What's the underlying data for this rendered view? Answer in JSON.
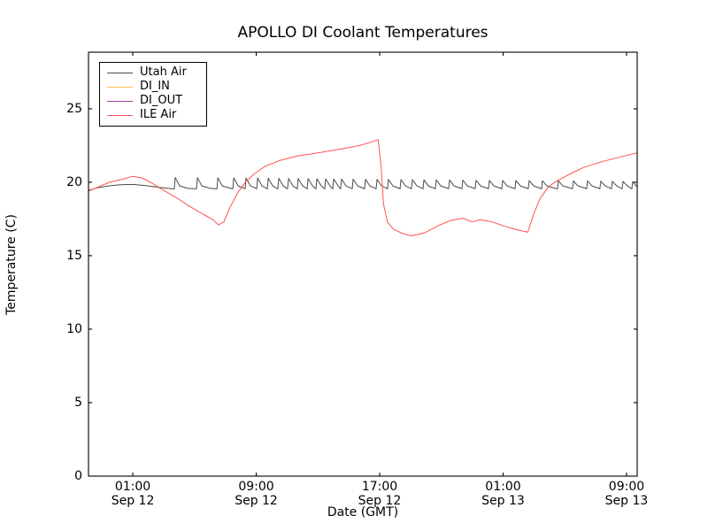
{
  "chart_data": {
    "type": "line",
    "title": "APOLLO DI Coolant Temperatures",
    "xlabel": "Date (GMT)",
    "ylabel": "Temperature (C)",
    "x_unit": "hours since Sep 12 00:00 GMT",
    "xlim": [
      -1.87,
      33.69
    ],
    "ylim": [
      0,
      28.85
    ],
    "yticks": [
      0,
      5,
      10,
      15,
      20,
      25
    ],
    "xticks": [
      {
        "value": 1,
        "time": "01:00",
        "date": "Sep 12"
      },
      {
        "value": 9,
        "time": "09:00",
        "date": "Sep 12"
      },
      {
        "value": 17,
        "time": "17:00",
        "date": "Sep 12"
      },
      {
        "value": 25,
        "time": "01:00",
        "date": "Sep 13"
      },
      {
        "value": 33,
        "time": "09:00",
        "date": "Sep 13"
      }
    ],
    "grid": false,
    "legend_position": "upper-left",
    "axis_color": "#000000",
    "series": [
      {
        "name": "Utah Air",
        "color": "#4a4a4a",
        "style": "sawtooth",
        "base_points": [
          [
            -1.87,
            19.45
          ],
          [
            -1.3,
            19.62
          ],
          [
            -0.6,
            19.75
          ],
          [
            0.2,
            19.83
          ],
          [
            1.0,
            19.85
          ],
          [
            1.8,
            19.78
          ],
          [
            2.5,
            19.68
          ],
          [
            3.3,
            19.58
          ],
          [
            3.62,
            19.55
          ]
        ],
        "spikes": {
          "times": [
            3.69,
            5.13,
            6.45,
            7.48,
            8.28,
            9.03,
            9.72,
            10.4,
            11.03,
            11.66,
            12.3,
            12.87,
            13.44,
            13.96,
            14.47,
            15.22,
            16.02,
            16.77,
            17.51,
            18.32,
            19.06,
            19.81,
            20.61,
            21.47,
            22.33,
            23.19,
            24.05,
            24.91,
            25.77,
            26.63,
            27.49,
            28.52,
            29.5,
            30.41,
            31.27,
            32.02,
            32.71,
            33.34
          ],
          "base": 19.55,
          "peak_start": 20.32,
          "peak_end": 20.05,
          "rise_h": 0.06,
          "decay_h": 0.35,
          "decay_level": 19.75
        },
        "end_point": [
          33.69,
          19.8
        ]
      },
      {
        "name": "DI_IN",
        "color": "#ffbf52",
        "points": [
          [
            -1.87,
            0
          ],
          [
            33.69,
            0
          ]
        ]
      },
      {
        "name": "DI_OUT",
        "color": "#9c3f9c",
        "points": [
          [
            -1.87,
            0
          ],
          [
            33.69,
            0
          ]
        ]
      },
      {
        "name": "ILE Air",
        "color": "#ff5252",
        "points": [
          [
            -1.87,
            19.4
          ],
          [
            -1.2,
            19.7
          ],
          [
            -0.5,
            20.0
          ],
          [
            0.3,
            20.2
          ],
          [
            1.0,
            20.4
          ],
          [
            1.6,
            20.3
          ],
          [
            2.3,
            19.9
          ],
          [
            3.0,
            19.45
          ],
          [
            3.9,
            18.9
          ],
          [
            4.7,
            18.35
          ],
          [
            5.6,
            17.8
          ],
          [
            6.2,
            17.45
          ],
          [
            6.55,
            17.1
          ],
          [
            6.9,
            17.3
          ],
          [
            7.3,
            18.3
          ],
          [
            7.8,
            19.3
          ],
          [
            8.3,
            20.0
          ],
          [
            8.9,
            20.6
          ],
          [
            9.6,
            21.1
          ],
          [
            10.6,
            21.5
          ],
          [
            11.7,
            21.8
          ],
          [
            13.0,
            22.0
          ],
          [
            14.4,
            22.25
          ],
          [
            15.7,
            22.5
          ],
          [
            16.5,
            22.75
          ],
          [
            16.9,
            22.9
          ],
          [
            17.1,
            21.0
          ],
          [
            17.25,
            18.5
          ],
          [
            17.5,
            17.3
          ],
          [
            17.9,
            16.8
          ],
          [
            18.5,
            16.5
          ],
          [
            19.05,
            16.35
          ],
          [
            19.9,
            16.55
          ],
          [
            20.9,
            17.1
          ],
          [
            21.6,
            17.4
          ],
          [
            22.4,
            17.55
          ],
          [
            23.0,
            17.3
          ],
          [
            23.5,
            17.45
          ],
          [
            24.3,
            17.3
          ],
          [
            25.1,
            17.0
          ],
          [
            25.8,
            16.8
          ],
          [
            26.6,
            16.6
          ],
          [
            27.0,
            17.9
          ],
          [
            27.4,
            18.9
          ],
          [
            27.95,
            19.7
          ],
          [
            28.5,
            20.1
          ],
          [
            29.4,
            20.6
          ],
          [
            30.2,
            21.0
          ],
          [
            31.4,
            21.4
          ],
          [
            32.5,
            21.7
          ],
          [
            33.69,
            22.0
          ]
        ]
      }
    ]
  }
}
